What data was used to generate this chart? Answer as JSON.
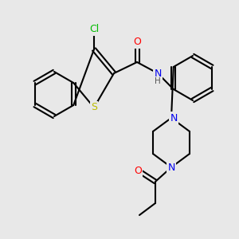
{
  "background_color": "#e8e8e8",
  "bond_color": "#000000",
  "bond_lw": 1.5,
  "atom_colors": {
    "N": "#0000ee",
    "O": "#ff0000",
    "S": "#bbbb00",
    "Cl": "#00bb00",
    "H": "#555555"
  },
  "font_size": 9,
  "font_size_small": 7.5
}
